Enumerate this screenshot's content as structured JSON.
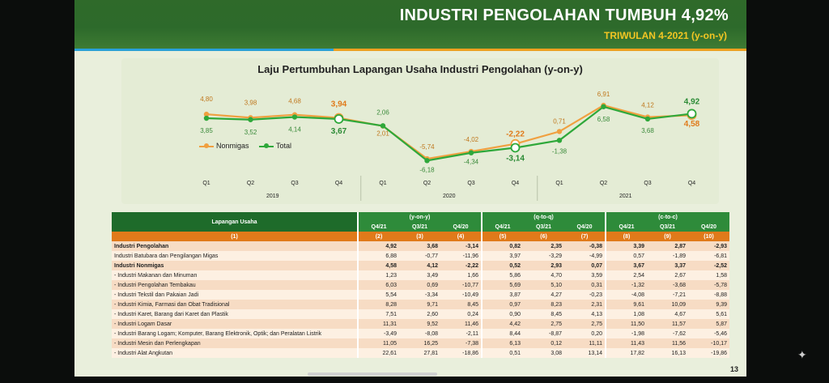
{
  "header": {
    "title": "INDUSTRI PENGOLAHAN TUMBUH 4,92%",
    "subtitle": "TRIWULAN 4-2021 (y-on-y)"
  },
  "colors": {
    "nonmigas": "#f0a040",
    "total": "#2ea83a",
    "header_green": "#2d6a2b",
    "accent_orange": "#e07a1a"
  },
  "chart_data": {
    "type": "line",
    "title": "Laju Pertumbuhan Lapangan Usaha Industri Pengolahan (y-on-y)",
    "categories": [
      "Q1",
      "Q2",
      "Q3",
      "Q4",
      "Q1",
      "Q2",
      "Q3",
      "Q4",
      "Q1",
      "Q2",
      "Q3",
      "Q4"
    ],
    "years": [
      {
        "label": "2019",
        "span": [
          0,
          3
        ]
      },
      {
        "label": "2020",
        "span": [
          4,
          7
        ]
      },
      {
        "label": "2021",
        "span": [
          8,
          11
        ]
      }
    ],
    "series": [
      {
        "name": "Nonmigas",
        "values": [
          4.8,
          3.98,
          4.68,
          3.94,
          2.01,
          -5.74,
          -4.02,
          -2.22,
          0.71,
          6.91,
          4.12,
          4.58
        ],
        "labels": [
          "4,80",
          "3,98",
          "4,68",
          "3,94",
          "2,01",
          "-5,74",
          "-4,02",
          "-2,22",
          "0,71",
          "6,91",
          "4,12",
          "4,58"
        ]
      },
      {
        "name": "Total",
        "values": [
          3.85,
          3.52,
          4.14,
          3.67,
          2.06,
          -6.18,
          -4.34,
          -3.14,
          -1.38,
          6.58,
          3.68,
          4.92
        ],
        "labels": [
          "3,85",
          "3,52",
          "4,14",
          "3,67",
          "2,06",
          "-6,18",
          "-4,34",
          "-3,14",
          "-1,38",
          "6,58",
          "3,68",
          "4,92"
        ]
      }
    ],
    "legend_position": "left"
  },
  "table": {
    "header_label": "Lapangan Usaha",
    "header_code": "(1)",
    "groups": [
      "(y-on-y)",
      "(q-to-q)",
      "(c-to-c)"
    ],
    "periods": [
      "Q4/21",
      "Q3/21",
      "Q4/20",
      "Q4/21",
      "Q3/21",
      "Q4/20",
      "Q4/21",
      "Q3/21",
      "Q4/20"
    ],
    "codes": [
      "(2)",
      "(3)",
      "(4)",
      "(5)",
      "(6)",
      "(7)",
      "(8)",
      "(9)",
      "(10)"
    ],
    "rows": [
      {
        "name": "Industri Pengolahan",
        "bold": true,
        "v": [
          "4,92",
          "3,68",
          "-3,14",
          "0,82",
          "2,35",
          "-0,38",
          "3,39",
          "2,87",
          "-2,93"
        ]
      },
      {
        "name": "Industri Batubara dan Pengilangan Migas",
        "bold": false,
        "v": [
          "6,88",
          "-0,77",
          "-11,96",
          "3,97",
          "-3,29",
          "-4,99",
          "0,57",
          "-1,89",
          "-6,81"
        ]
      },
      {
        "name": "Industri Nonmigas",
        "bold": true,
        "v": [
          "4,58",
          "4,12",
          "-2,22",
          "0,52",
          "2,93",
          "0,07",
          "3,67",
          "3,37",
          "-2,52"
        ]
      },
      {
        "name": "- Industri Makanan dan Minuman",
        "bold": false,
        "v": [
          "1,23",
          "3,49",
          "1,66",
          "5,86",
          "4,70",
          "3,59",
          "2,54",
          "2,67",
          "1,58"
        ]
      },
      {
        "name": "- Industri Pengolahan Tembakau",
        "bold": false,
        "v": [
          "6,03",
          "0,69",
          "-10,77",
          "5,69",
          "5,10",
          "0,31",
          "-1,32",
          "-3,68",
          "-5,78"
        ]
      },
      {
        "name": "- Industri Tekstil dan Pakaian Jadi",
        "bold": false,
        "v": [
          "5,54",
          "-3,34",
          "-10,49",
          "3,87",
          "4,27",
          "-0,23",
          "-4,08",
          "-7,21",
          "-8,88"
        ]
      },
      {
        "name": "- Industri Kimia, Farmasi dan Obat Tradisional",
        "bold": false,
        "v": [
          "8,28",
          "9,71",
          "8,45",
          "0,97",
          "8,23",
          "2,31",
          "9,61",
          "10,09",
          "9,39"
        ]
      },
      {
        "name": "- Industri Karet, Barang dari Karet dan Plastik",
        "bold": false,
        "v": [
          "7,51",
          "2,60",
          "0,24",
          "0,90",
          "8,45",
          "4,13",
          "1,08",
          "4,67",
          "5,61"
        ]
      },
      {
        "name": "- Industri Logam Dasar",
        "bold": false,
        "v": [
          "11,31",
          "9,52",
          "11,46",
          "4,42",
          "2,75",
          "2,75",
          "11,50",
          "11,57",
          "5,87"
        ]
      },
      {
        "name": "- Industri Barang Logam; Komputer, Barang Elektronik, Optik; dan Peralatan Listrik",
        "bold": false,
        "v": [
          "-3,49",
          "-8,08",
          "-2,11",
          "8,44",
          "-8,87",
          "0,20",
          "-1,98",
          "-7,62",
          "-5,46"
        ]
      },
      {
        "name": "- Industri Mesin dan Perlengkapan",
        "bold": false,
        "v": [
          "11,05",
          "16,25",
          "-7,38",
          "6,13",
          "0,12",
          "11,11",
          "11,43",
          "11,56",
          "-10,17"
        ]
      },
      {
        "name": "- Industri Alat Angkutan",
        "bold": false,
        "v": [
          "22,61",
          "27,81",
          "-18,86",
          "0,51",
          "3,08",
          "13,14",
          "17,82",
          "16,13",
          "-19,86"
        ]
      }
    ],
    "page_number": "13"
  }
}
